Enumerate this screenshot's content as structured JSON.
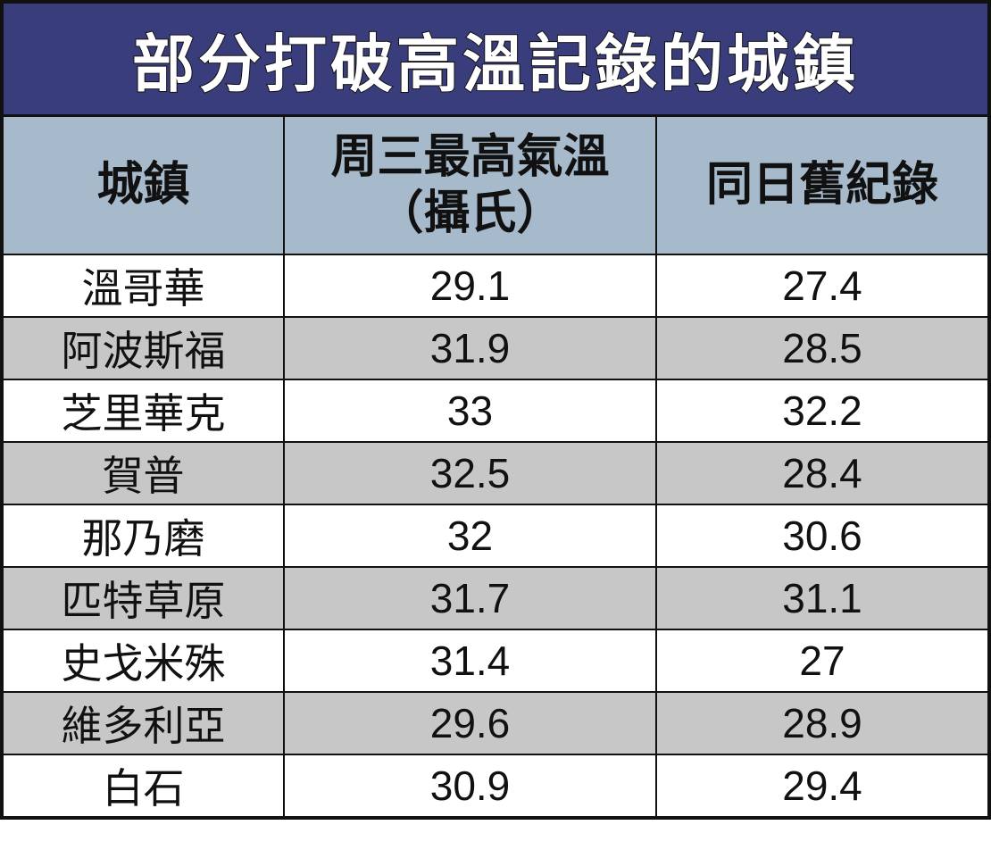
{
  "title": "部分打破高溫記錄的城鎮",
  "table": {
    "header": [
      [
        "城鎮"
      ],
      [
        "周三最高氣溫",
        "（攝氏）"
      ],
      [
        "同日舊紀錄"
      ]
    ],
    "rows": [
      [
        "溫哥華",
        29.1,
        27.4
      ],
      [
        "阿波斯福",
        31.9,
        28.5
      ],
      [
        "芝里華克",
        33,
        32.2
      ],
      [
        "賀普",
        32.5,
        28.4
      ],
      [
        "那乃磨",
        32,
        30.6
      ],
      [
        "匹特草原",
        31.7,
        31.1
      ],
      [
        "史戈米殊",
        31.4,
        27
      ],
      [
        "維多利亞",
        29.6,
        28.9
      ],
      [
        "白石",
        30.9,
        29.4
      ]
    ]
  }
}
